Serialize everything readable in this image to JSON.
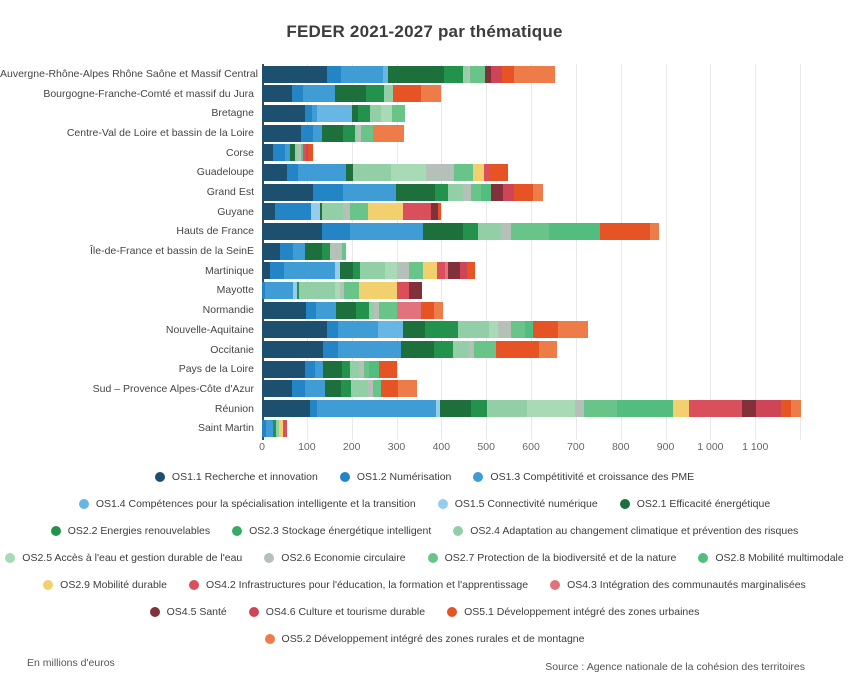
{
  "title": "FEDER 2021-2027 par thématique",
  "footer": {
    "left": "En millions d'euros",
    "right": "Source : Agence nationale de la cohésion des territoires"
  },
  "chart_data": {
    "type": "bar",
    "orientation": "horizontal",
    "stacked": true,
    "unit": "millions d'euros",
    "x_axis": {
      "min": 0,
      "max": 1240,
      "tick_step": 100,
      "tick_labels": [
        "0",
        "100",
        "200",
        "300",
        "400",
        "500",
        "600",
        "700",
        "800",
        "900",
        "1 000",
        "1 100"
      ],
      "grid": true
    },
    "categories": [
      {
        "name": "OS1.1 Recherche et innovation",
        "color": "#1d4f6e"
      },
      {
        "name": "OS1.2 Numérisation",
        "color": "#2385c6"
      },
      {
        "name": "OS1.3 Compétitivité et croissance des PME",
        "color": "#3f9cd4"
      },
      {
        "name": "OS1.4 Compétences pour la spécialisation intelligente et la transition",
        "color": "#68b6e4"
      },
      {
        "name": "OS1.5 Connectivité numérique",
        "color": "#96cdee"
      },
      {
        "name": "OS2.1 Efficacité énergétique",
        "color": "#1d6f3c"
      },
      {
        "name": "OS2.2 Energies renouvelables",
        "color": "#23924d"
      },
      {
        "name": "OS2.3 Stockage énergétique intelligent",
        "color": "#36ab62"
      },
      {
        "name": "OS2.4 Adaptation au changement climatique et prévention des risques",
        "color": "#93cfa6"
      },
      {
        "name": "OS2.5 Accès à l'eau et gestion durable de l'eau",
        "color": "#a8dab6"
      },
      {
        "name": "OS2.6 Economie circulaire",
        "color": "#b4c0b8"
      },
      {
        "name": "OS2.7 Protection de la biodiversité et de la nature",
        "color": "#68c489"
      },
      {
        "name": "OS2.8 Mobilité multimodale",
        "color": "#52bd7e"
      },
      {
        "name": "OS2.9 Mobilité durable",
        "color": "#f1d06d"
      },
      {
        "name": "OS4.2 Infrastructures pour l'éducation, la formation et l'apprentissage",
        "color": "#d94f5c"
      },
      {
        "name": "OS4.3 Intégration des communautés marginalisées",
        "color": "#e2737c"
      },
      {
        "name": "OS4.5 Santé",
        "color": "#82303a"
      },
      {
        "name": "OS4.6 Culture et tourisme durable",
        "color": "#cf4558"
      },
      {
        "name": "OS5.1 Développement intégré des zones urbaines",
        "color": "#e65426"
      },
      {
        "name": "OS5.2 Développement intégré des zones rurales et de montagne",
        "color": "#ee7c49"
      }
    ],
    "legend_rows": [
      [
        0,
        1,
        2
      ],
      [
        3,
        4,
        5
      ],
      [
        6,
        7,
        8
      ],
      [
        9,
        10,
        11,
        12
      ],
      [
        13,
        14,
        15
      ],
      [
        16,
        17,
        18
      ],
      [
        19
      ]
    ],
    "regions": [
      {
        "name": "Auvergne-Rhône-Alpes Rhône Saône et Massif Central",
        "values": [
          146,
          31,
          93,
          10,
          0,
          127,
          41,
          0,
          10,
          0,
          5,
          35,
          0,
          0,
          0,
          0,
          13,
          24,
          28,
          90
        ]
      },
      {
        "name": "Bourgogne-Franche-Comté et massif du Jura",
        "values": [
          66,
          26,
          70,
          0,
          0,
          70,
          41,
          0,
          19,
          0,
          0,
          0,
          0,
          0,
          0,
          0,
          0,
          0,
          63,
          44
        ]
      },
      {
        "name": "Bretagne",
        "values": [
          96,
          15,
          11,
          78,
          0,
          15,
          26,
          0,
          24,
          24,
          0,
          30,
          0,
          0,
          0,
          0,
          0,
          0,
          0,
          0
        ]
      },
      {
        "name": "Centre-Val de Loire et bassin de la Loire",
        "values": [
          88,
          26,
          19,
          0,
          0,
          48,
          26,
          0,
          7,
          0,
          7,
          26,
          0,
          0,
          0,
          0,
          0,
          0,
          0,
          69
        ]
      },
      {
        "name": "Corse",
        "values": [
          25,
          26,
          11,
          0,
          0,
          11,
          0,
          0,
          8,
          0,
          5,
          6,
          0,
          0,
          7,
          0,
          0,
          4,
          10,
          0
        ]
      },
      {
        "name": "Guadeloupe",
        "values": [
          55,
          26,
          107,
          0,
          0,
          15,
          0,
          0,
          85,
          78,
          63,
          41,
          0,
          26,
          11,
          0,
          0,
          0,
          41,
          0
        ]
      },
      {
        "name": "Grand Est",
        "values": [
          114,
          67,
          119,
          0,
          0,
          85,
          30,
          0,
          33,
          0,
          19,
          22,
          22,
          0,
          0,
          0,
          26,
          26,
          41,
          22
        ]
      },
      {
        "name": "Guyane",
        "values": [
          29,
          81,
          0,
          0,
          19,
          5,
          0,
          0,
          47,
          0,
          15,
          41,
          0,
          78,
          63,
          0,
          15,
          0,
          7,
          0
        ]
      },
      {
        "name": "Hauts de France",
        "values": [
          133,
          63,
          163,
          0,
          0,
          89,
          33,
          0,
          52,
          0,
          22,
          85,
          115,
          0,
          0,
          0,
          0,
          0,
          111,
          19
        ]
      },
      {
        "name": "Île-de-France et bassin de la SeinE",
        "values": [
          40,
          30,
          26,
          0,
          0,
          37,
          19,
          0,
          0,
          0,
          26,
          9,
          0,
          0,
          0,
          0,
          0,
          0,
          0,
          0
        ]
      },
      {
        "name": "Martinique",
        "values": [
          18,
          30,
          115,
          0,
          11,
          30,
          15,
          0,
          56,
          26,
          26,
          33,
          0,
          30,
          19,
          7,
          26,
          15,
          19,
          0
        ]
      },
      {
        "name": "Mayotte",
        "values": [
          0,
          7,
          63,
          0,
          9,
          0,
          4,
          0,
          80,
          10,
          11,
          33,
          0,
          85,
          26,
          0,
          30,
          0,
          0,
          0
        ]
      },
      {
        "name": "Normandie",
        "values": [
          99,
          22,
          44,
          0,
          0,
          44,
          30,
          0,
          11,
          0,
          11,
          41,
          0,
          0,
          0,
          52,
          0,
          0,
          30,
          19
        ]
      },
      {
        "name": "Nouvelle-Aquitaine",
        "values": [
          144,
          26,
          89,
          56,
          0,
          48,
          74,
          0,
          70,
          19,
          30,
          30,
          19,
          0,
          0,
          0,
          0,
          0,
          56,
          67
        ]
      },
      {
        "name": "Occitanie",
        "values": [
          136,
          33,
          141,
          0,
          0,
          74,
          41,
          0,
          37,
          0,
          11,
          48,
          0,
          0,
          0,
          0,
          0,
          0,
          96,
          41
        ]
      },
      {
        "name": "Pays de la Loire",
        "values": [
          96,
          22,
          19,
          0,
          0,
          41,
          19,
          0,
          19,
          0,
          11,
          11,
          22,
          0,
          0,
          0,
          0,
          0,
          41,
          0
        ]
      },
      {
        "name": "Sud – Provence Alpes-Côte d'Azur",
        "values": [
          66,
          30,
          44,
          0,
          0,
          37,
          22,
          0,
          37,
          0,
          11,
          19,
          0,
          0,
          0,
          0,
          0,
          0,
          37,
          44
        ]
      },
      {
        "name": "Réunion",
        "values": [
          107,
          15,
          267,
          0,
          7,
          70,
          37,
          0,
          89,
          107,
          19,
          74,
          124,
          36,
          118,
          0,
          31,
          56,
          22,
          24
        ]
      },
      {
        "name": "Saint Martin",
        "values": [
          0,
          10,
          15,
          0,
          0,
          0,
          7,
          0,
          7,
          0,
          0,
          0,
          0,
          7,
          11,
          0,
          0,
          0,
          0,
          0
        ]
      }
    ]
  }
}
